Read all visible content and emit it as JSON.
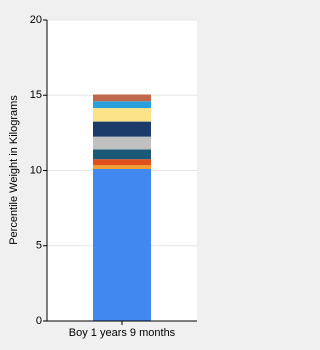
{
  "chart_data": {
    "type": "stacked-bar",
    "categories": [
      "Boy 1 years 9 months"
    ],
    "y_label": "Percentile Weight in Kilograms",
    "ylim": [
      0,
      20
    ],
    "yticks": [
      0,
      5,
      10,
      15,
      20
    ],
    "grid": true,
    "series": [
      {
        "color": "#4189f0",
        "values": [
          10.1
        ]
      },
      {
        "color": "#f0a030",
        "values": [
          0.25
        ]
      },
      {
        "color": "#e0501a",
        "values": [
          0.4
        ]
      },
      {
        "color": "#1a5a78",
        "values": [
          0.65
        ]
      },
      {
        "color": "#c0c0c0",
        "values": [
          0.85
        ]
      },
      {
        "color": "#1c3a6a",
        "values": [
          1.0
        ]
      },
      {
        "color": "#fce38a",
        "values": [
          0.9
        ]
      },
      {
        "color": "#28a0dc",
        "values": [
          0.45
        ]
      },
      {
        "color": "#c0684a",
        "values": [
          0.45
        ]
      }
    ]
  }
}
